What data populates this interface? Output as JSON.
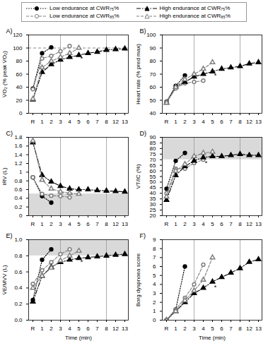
{
  "chart_data": [
    {
      "type": "line",
      "title": "A)",
      "y_label": "V̇O₂ (% peak V̇O₂)",
      "legend": "top",
      "categories": [
        "R",
        "1",
        "2",
        "3",
        "4",
        "5",
        "6",
        "7",
        "8",
        "12",
        "13"
      ],
      "ylim": [
        0,
        120
      ],
      "yticks": [
        0,
        20,
        40,
        60,
        80,
        100,
        120
      ],
      "hline": 100,
      "vlines": [
        "3",
        "8"
      ],
      "annotations": [
        {
          "x": "5",
          "y": 84,
          "text": "*"
        }
      ],
      "series": [
        {
          "name": "Low endurance at CWR₇₅%",
          "color": "#000000",
          "marker": "circle",
          "line_style": "dotted",
          "values": [
            38,
            92,
            101,
            null,
            null,
            null,
            null,
            null,
            null,
            null,
            null
          ]
        },
        {
          "name": "Low endurance at CWR₈₅%",
          "color": "#808080",
          "marker": "circle-open",
          "line_style": "dashed",
          "values": [
            37,
            84,
            88,
            95,
            103,
            null,
            null,
            null,
            null,
            null,
            null
          ]
        },
        {
          "name": "High endurance at CWR₇₅%",
          "color": "#000000",
          "marker": "triangle",
          "line_style": "dashdot",
          "values": [
            21,
            63,
            75,
            82,
            86,
            89,
            92,
            94,
            97,
            98,
            99
          ]
        },
        {
          "name": "High endurance at CWR₈₅%",
          "color": "#808080",
          "marker": "triangle-open",
          "line_style": "dashed",
          "values": [
            22,
            70,
            80,
            86,
            92,
            100,
            null,
            null,
            null,
            null,
            null
          ]
        }
      ]
    },
    {
      "type": "line",
      "title": "B)",
      "y_label": "Heart rate (% pred max)",
      "categories": [
        "R",
        "1",
        "2",
        "3",
        "4",
        "5",
        "6",
        "7",
        "8",
        "12",
        "13"
      ],
      "ylim": [
        40,
        100
      ],
      "yticks": [
        40,
        50,
        60,
        70,
        80,
        90,
        100
      ],
      "vlines": [
        "3",
        "8"
      ],
      "annotations": [
        {
          "x": "5",
          "y": 69,
          "text": "*"
        }
      ],
      "series": [
        {
          "name": "Low endurance at CWR₇₅%",
          "color": "#000000",
          "marker": "circle",
          "line_style": "dotted",
          "values": [
            49,
            61,
            69,
            null,
            null,
            null,
            null,
            null,
            null,
            null,
            null
          ]
        },
        {
          "name": "Low endurance at CWR₈₅%",
          "color": "#808080",
          "marker": "circle-open",
          "line_style": "dashed",
          "values": [
            49,
            59,
            63,
            64,
            65,
            null,
            null,
            null,
            null,
            null,
            null
          ]
        },
        {
          "name": "High endurance at CWR₇₅%",
          "color": "#000000",
          "marker": "triangle",
          "line_style": "dashdot",
          "values": [
            48,
            60,
            64,
            68,
            70,
            72,
            74,
            75,
            76,
            78,
            79
          ]
        },
        {
          "name": "High endurance at CWR₈₅%",
          "color": "#808080",
          "marker": "triangle-open",
          "line_style": "dashed",
          "values": [
            48,
            60,
            66,
            70,
            74,
            79,
            null,
            null,
            null,
            null,
            null
          ]
        }
      ]
    },
    {
      "type": "line",
      "title": "C)",
      "y_label": "IRV (L)",
      "categories": [
        "R",
        "1",
        "2",
        "3",
        "4",
        "5",
        "6",
        "7",
        "8",
        "12",
        "13"
      ],
      "ylim": [
        0,
        1.8
      ],
      "yticks": [
        0,
        0.2,
        0.4,
        0.6,
        0.8,
        1,
        1.2,
        1.4,
        1.6,
        1.8
      ],
      "band": [
        0,
        0.5
      ],
      "vlines": [
        "3",
        "8"
      ],
      "series": [
        {
          "name": "Low endurance at CWR₇₅%",
          "color": "#000000",
          "marker": "circle",
          "line_style": "dotted",
          "values": [
            0.88,
            0.45,
            0.3,
            null,
            null,
            null,
            null,
            null,
            null,
            null,
            null
          ]
        },
        {
          "name": "Low endurance at CWR₈₅%",
          "color": "#808080",
          "marker": "circle-open",
          "line_style": "dashed",
          "values": [
            0.88,
            0.5,
            0.46,
            0.45,
            0.42,
            null,
            null,
            null,
            null,
            null,
            null
          ]
        },
        {
          "name": "High endurance at CWR₇₅%",
          "color": "#000000",
          "marker": "triangle",
          "line_style": "dashdot",
          "values": [
            1.68,
            0.93,
            0.78,
            0.68,
            0.62,
            0.6,
            0.6,
            0.58,
            0.57,
            0.56,
            0.55
          ]
        },
        {
          "name": "High endurance at CWR₈₅%",
          "color": "#808080",
          "marker": "triangle-open",
          "line_style": "dashed",
          "values": [
            1.72,
            0.82,
            0.62,
            0.55,
            0.52,
            0.5,
            null,
            null,
            null,
            null,
            null
          ]
        }
      ]
    },
    {
      "type": "line",
      "title": "D)",
      "y_label": "VT/IC (%)",
      "categories": [
        "R",
        "1",
        "2",
        "3",
        "4",
        "5",
        "6",
        "7",
        "8",
        "12",
        "13"
      ],
      "ylim": [
        20,
        90
      ],
      "yticks": [
        20,
        25,
        30,
        35,
        40,
        45,
        50,
        55,
        60,
        65,
        70,
        75,
        80,
        85,
        90
      ],
      "band": [
        70,
        90
      ],
      "vlines": [
        "3",
        "8"
      ],
      "annotations": [
        {
          "x": "4",
          "y": 67,
          "text": "*"
        }
      ],
      "series": [
        {
          "name": "Low endurance at CWR₇₅%",
          "color": "#000000",
          "marker": "circle",
          "line_style": "dotted",
          "values": [
            44,
            69,
            76,
            null,
            null,
            null,
            null,
            null,
            null,
            null,
            null
          ]
        },
        {
          "name": "Low endurance at CWR₈₅%",
          "color": "#808080",
          "marker": "circle-open",
          "line_style": "dashed",
          "values": [
            40,
            62,
            62,
            67,
            70,
            null,
            null,
            null,
            null,
            null,
            null
          ]
        },
        {
          "name": "High endurance at CWR₇₅%",
          "color": "#000000",
          "marker": "triangle",
          "line_style": "dashdot",
          "values": [
            34,
            56,
            64,
            69,
            72,
            73,
            73,
            74,
            75,
            74,
            74
          ]
        },
        {
          "name": "High endurance at CWR₈₅%",
          "color": "#808080",
          "marker": "triangle-open",
          "line_style": "dashed",
          "values": [
            37,
            60,
            66,
            73,
            76,
            77,
            null,
            null,
            null,
            null,
            null
          ]
        }
      ]
    },
    {
      "type": "line",
      "title": "E)",
      "y_label": "V̇E/MVV (L)",
      "x_label": "Time (min)",
      "categories": [
        "R",
        "1",
        "2",
        "3",
        "4",
        "5",
        "6",
        "7",
        "8",
        "12",
        "13"
      ],
      "ylim": [
        0,
        1
      ],
      "yticks": [
        {
          "value": 0,
          "label": "0.0"
        },
        0.2,
        0.4,
        0.6,
        0.8,
        {
          "value": 1,
          "label": "1.0"
        }
      ],
      "band": [
        0.8,
        1
      ],
      "vlines": [
        "3",
        "8"
      ],
      "annotations": [
        {
          "x": "5",
          "y": 0.72,
          "text": "*"
        }
      ],
      "series": [
        {
          "name": "Low endurance at CWR₇₅%",
          "color": "#000000",
          "marker": "circle",
          "line_style": "dotted",
          "values": [
            0.25,
            0.75,
            0.88,
            null,
            null,
            null,
            null,
            null,
            null,
            null,
            null
          ]
        },
        {
          "name": "Low endurance at CWR₈₅%",
          "color": "#808080",
          "marker": "circle-open",
          "line_style": "dashed",
          "values": [
            0.45,
            0.62,
            0.72,
            0.82,
            0.88,
            null,
            null,
            null,
            null,
            null,
            null
          ]
        },
        {
          "name": "High endurance at CWR₇₅%",
          "color": "#000000",
          "marker": "triangle",
          "line_style": "dashdot",
          "values": [
            0.23,
            0.55,
            0.66,
            0.72,
            0.75,
            0.77,
            0.78,
            0.79,
            0.8,
            0.81,
            0.82
          ]
        },
        {
          "name": "High endurance at CWR₈₅%",
          "color": "#808080",
          "marker": "triangle-open",
          "line_style": "dashed",
          "values": [
            0.4,
            0.55,
            0.65,
            0.74,
            0.8,
            0.86,
            null,
            null,
            null,
            null,
            null
          ]
        }
      ]
    },
    {
      "type": "line",
      "title": "F)",
      "y_label": "Borg dyspnoea score",
      "x_label": "Time (min)",
      "categories": [
        "R",
        "1",
        "2",
        "3",
        "4",
        "5",
        "6",
        "7",
        "8",
        "12",
        "13"
      ],
      "ylim": [
        0,
        9
      ],
      "yticks": [
        0,
        1,
        2,
        3,
        4,
        5,
        6,
        7,
        8,
        9
      ],
      "vlines": [
        "3",
        "8"
      ],
      "annotations": [
        {
          "x": "5",
          "y": 3.7,
          "text": "*"
        }
      ],
      "series": [
        {
          "name": "Low endurance at CWR₇₅%",
          "color": "#000000",
          "marker": "circle",
          "line_style": "dotted",
          "values": [
            0,
            1.2,
            6,
            null,
            null,
            null,
            null,
            null,
            null,
            null,
            null
          ]
        },
        {
          "name": "Low endurance at CWR₈₅%",
          "color": "#808080",
          "marker": "circle-open",
          "line_style": "dashed",
          "values": [
            0,
            1.2,
            2.5,
            4,
            6.2,
            null,
            null,
            null,
            null,
            null,
            null
          ]
        },
        {
          "name": "High endurance at CWR₇₅%",
          "color": "#000000",
          "marker": "triangle",
          "line_style": "dashdot",
          "values": [
            0,
            1,
            2,
            3,
            3.6,
            4.3,
            4.8,
            5.3,
            5.8,
            6.5,
            6.8
          ]
        },
        {
          "name": "High endurance at CWR₈₅%",
          "color": "#808080",
          "marker": "triangle-open",
          "line_style": "dashed",
          "values": [
            0,
            1,
            2.2,
            3.3,
            4.5,
            7,
            null,
            null,
            null,
            null,
            null
          ]
        }
      ]
    }
  ]
}
